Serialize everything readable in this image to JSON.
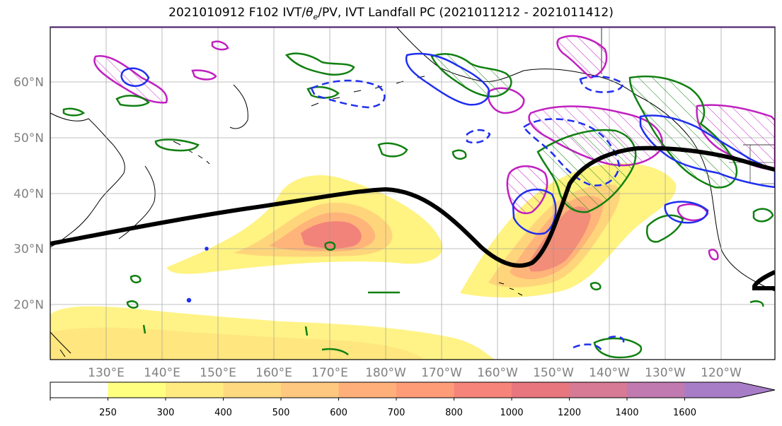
{
  "title_main": "2021010912 F102 IVT/",
  "title_symbol": "θ",
  "title_sub": "e",
  "title_rest": "/PV, IVT Landfall PC (2021011212 - 2021011412)",
  "lat_labels": [
    "60°N",
    "50°N",
    "40°N",
    "30°N",
    "20°N"
  ],
  "lon_labels": [
    "130°E",
    "140°E",
    "150°E",
    "160°E",
    "170°E",
    "180°W",
    "170°W",
    "160°W",
    "150°W",
    "140°W",
    "130°W",
    "120°W"
  ],
  "colorbar": {
    "levels": [
      "250",
      "300",
      "400",
      "500",
      "600",
      "700",
      "800",
      "1000",
      "1200",
      "1400",
      "1600"
    ],
    "colors": [
      "#ffffff",
      "#ffff80",
      "#ffeb80",
      "#ffd980",
      "#ffc880",
      "#ffb07a",
      "#ff9c78",
      "#f7847a",
      "#e8767f",
      "#d67a95",
      "#c07ab0",
      "#a87dc8"
    ]
  },
  "contour_colors": {
    "ivt_fill_low": "#fff27a",
    "ivt_fill_mid": "#ffc27a",
    "ivt_fill_high": "#f07a7a",
    "green": "#118011",
    "magenta": "#c020c0",
    "blue": "#1f2ff0",
    "track": "#000000"
  }
}
